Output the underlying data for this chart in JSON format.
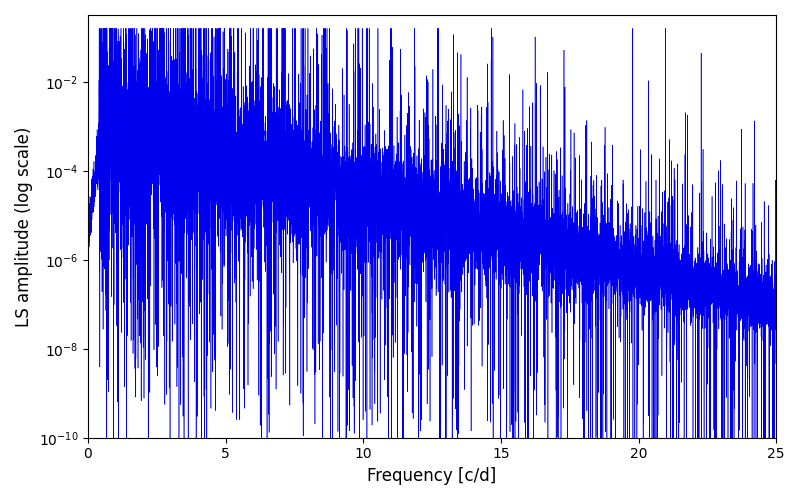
{
  "xlabel": "Frequency [c/d]",
  "ylabel": "LS amplitude (log scale)",
  "line_color": "#0000EE",
  "xlim": [
    0,
    25
  ],
  "ylim_log": [
    -10.5,
    0.3
  ],
  "figsize": [
    8.0,
    5.0
  ],
  "dpi": 100,
  "seed": 12345,
  "n_points": 12000,
  "freq_max": 25.0,
  "background_color": "#ffffff"
}
